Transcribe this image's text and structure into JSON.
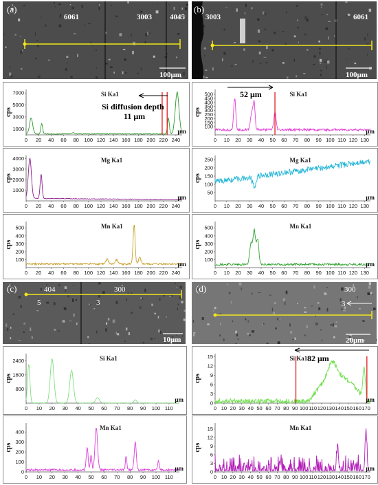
{
  "figure": {
    "panel_a": {
      "letter": "(a)",
      "sem": {
        "regions": [
          "6061",
          "3003",
          "4045"
        ],
        "scale_bar": "100μm"
      },
      "annotation": {
        "line1": "Si diffusion depth",
        "line2": "11 μm"
      }
    },
    "panel_b": {
      "letter": "(b)",
      "sem": {
        "regions": [
          "3003",
          "6061"
        ],
        "scale_bar": "100μm"
      },
      "annotation": "52 μm"
    },
    "panel_c": {
      "letter": "(c)",
      "sem": {
        "regions": [
          "404",
          "300"
        ],
        "markers": [
          "5",
          "3"
        ],
        "scale_bar": "10μm"
      }
    },
    "panel_d": {
      "letter": "(d)",
      "sem": {
        "regions": [
          "300"
        ],
        "markers": [
          "3"
        ],
        "scale_bar": "20μm"
      },
      "annotation": "82 μm"
    }
  },
  "chart_data": [
    {
      "id": "a1",
      "type": "line",
      "title": "Si Ka1",
      "ylabel": "cps",
      "xlabel": "μm",
      "color": "#2e9a2e",
      "xlim": [
        0,
        250
      ],
      "ylim": [
        0,
        7600
      ],
      "xticks": [
        "0",
        "20",
        "40",
        "60",
        "80",
        "100",
        "120",
        "140",
        "160",
        "180",
        "200",
        "220",
        "240"
      ],
      "yticks": [
        "1000",
        "3000",
        "5000",
        "7000"
      ],
      "baseline": 150,
      "noise": 60,
      "peaks": [
        [
          8,
          2700,
          2.5
        ],
        [
          25,
          1700,
          1.5
        ],
        [
          75,
          200,
          3
        ],
        [
          228,
          2700,
          1.5
        ],
        [
          242,
          7000,
          3
        ]
      ],
      "markers": [
        218,
        226
      ]
    },
    {
      "id": "b1",
      "type": "line",
      "title": "Si Ka1",
      "ylabel": "cps",
      "xlabel": "μm",
      "color": "#e43dd8",
      "xlim": [
        0,
        135
      ],
      "ylim": [
        0,
        560
      ],
      "xticks": [
        "0",
        "10",
        "20",
        "30",
        "40",
        "50",
        "60",
        "70",
        "80",
        "90",
        "100",
        "110",
        "120",
        "130"
      ],
      "yticks": [
        "100",
        "150",
        "200",
        "250",
        "300",
        "350",
        "400",
        "450",
        "500"
      ],
      "baseline": 62,
      "noise": 14,
      "peaks": [
        [
          17,
          390,
          0.9
        ],
        [
          32,
          230,
          1.2
        ],
        [
          34,
          300,
          0.8
        ],
        [
          52,
          210,
          1.0
        ]
      ],
      "markers": [
        52
      ]
    },
    {
      "id": "a2",
      "type": "line",
      "title": "Mg Ka1",
      "ylabel": "cps",
      "xlabel": "μm",
      "color": "#8a1e8c",
      "xlim": [
        0,
        250
      ],
      "ylim": [
        0,
        4300
      ],
      "xticks": [
        "0",
        "20",
        "40",
        "60",
        "80",
        "100",
        "120",
        "140",
        "160",
        "180",
        "200",
        "220",
        "240"
      ],
      "yticks": [
        "1000",
        "2000",
        "3000",
        "4000"
      ],
      "baseline": 220,
      "noise": 30,
      "peaks": [
        [
          6,
          3800,
          2.5
        ],
        [
          24,
          2300,
          1.6
        ]
      ],
      "decay_to": 120,
      "markers": []
    },
    {
      "id": "b2",
      "type": "line",
      "title": "Mg Ka1",
      "ylabel": "cps",
      "xlabel": "μm",
      "color": "#24b6d6",
      "xlim": [
        0,
        135
      ],
      "ylim": [
        0,
        275
      ],
      "xticks": [
        "0",
        "10",
        "20",
        "30",
        "40",
        "50",
        "60",
        "70",
        "80",
        "90",
        "100",
        "110",
        "120",
        "130"
      ],
      "yticks": [
        "50",
        "100",
        "150",
        "200",
        "250"
      ],
      "baseline": 115,
      "noise": 18,
      "trend_to": 240,
      "peaks": [
        [
          34,
          -55,
          1.5
        ]
      ],
      "markers": []
    },
    {
      "id": "a3",
      "type": "line",
      "title": "Mn Ka1",
      "ylabel": "cps",
      "xlabel": "μm",
      "color": "#c9a02a",
      "xlim": [
        0,
        250
      ],
      "ylim": [
        0,
        580
      ],
      "xticks": [
        "0",
        "20",
        "40",
        "60",
        "80",
        "100",
        "120",
        "140",
        "160",
        "180",
        "200",
        "220",
        "240"
      ],
      "yticks": [
        "100",
        "200",
        "300",
        "400",
        "500"
      ],
      "baseline": 45,
      "noise": 12,
      "peaks": [
        [
          130,
          60,
          2
        ],
        [
          145,
          50,
          2
        ],
        [
          173,
          500,
          1.6
        ],
        [
          182,
          80,
          2
        ]
      ],
      "markers": []
    },
    {
      "id": "b3",
      "type": "line",
      "title": "Mn Ka1",
      "ylabel": "cps",
      "xlabel": "μm",
      "color": "#2fa22f",
      "xlim": [
        0,
        135
      ],
      "ylim": [
        0,
        580
      ],
      "xticks": [
        "0",
        "10",
        "20",
        "30",
        "40",
        "50",
        "60",
        "70",
        "80",
        "90",
        "100",
        "110",
        "120",
        "130"
      ],
      "yticks": [
        "100",
        "200",
        "300",
        "400",
        "500"
      ],
      "baseline": 40,
      "noise": 14,
      "peaks": [
        [
          31,
          250,
          1.0
        ],
        [
          34,
          430,
          1.2
        ],
        [
          37,
          300,
          1.0
        ]
      ],
      "markers": []
    },
    {
      "id": "c1",
      "type": "line",
      "title": "Si Ka1",
      "ylabel": "cps",
      "xlabel": "μm",
      "color": "#7fe07f",
      "xlim": [
        0,
        118
      ],
      "ylim": [
        0,
        2800
      ],
      "xticks": [
        "0",
        "10",
        "20",
        "30",
        "40",
        "50",
        "60",
        "70",
        "80",
        "90",
        "100",
        "110"
      ],
      "yticks": [
        "800",
        "1600",
        "2400"
      ],
      "baseline": 10,
      "noise": 6,
      "peaks": [
        [
          2,
          2200,
          0.9
        ],
        [
          20,
          2500,
          1.4
        ],
        [
          35,
          1850,
          1.4
        ],
        [
          55,
          300,
          1.4
        ],
        [
          84,
          180,
          1.0
        ]
      ],
      "markers": []
    },
    {
      "id": "d1",
      "type": "line",
      "title": "Si Ka1",
      "ylabel": "cps",
      "xlabel": "μm",
      "color": "#6de04a",
      "xlim": [
        0,
        175
      ],
      "ylim": [
        0,
        16
      ],
      "xticks": [
        "0",
        "10",
        "20",
        "30",
        "40",
        "50",
        "60",
        "70",
        "80",
        "90",
        "100",
        "110",
        "120",
        "130",
        "140",
        "150",
        "160",
        "170"
      ],
      "yticks": [
        "0",
        "3",
        "6",
        "9",
        "12",
        "15"
      ],
      "baseline": 0.6,
      "noise": 0.8,
      "hump": [
        [
          105,
          170,
          8
        ]
      ],
      "peaks": [
        [
          132,
          5,
          5
        ],
        [
          168,
          10,
          1.5
        ]
      ],
      "markers": [
        91,
        171
      ]
    },
    {
      "id": "c2",
      "type": "line",
      "title": "Mn Ka1",
      "ylabel": "cps",
      "xlabel": "μm",
      "color": "#dc3fdc",
      "xlim": [
        0,
        118
      ],
      "ylim": [
        0,
        490
      ],
      "xticks": [
        "0",
        "10",
        "20",
        "30",
        "40",
        "50",
        "60",
        "70",
        "80",
        "90",
        "100",
        "110"
      ],
      "yticks": [
        "0",
        "100",
        "200",
        "300",
        "400"
      ],
      "baseline": 20,
      "noise": 10,
      "peaks": [
        [
          47,
          230,
          0.7
        ],
        [
          50,
          150,
          0.6
        ],
        [
          54,
          430,
          1.0
        ],
        [
          77,
          140,
          0.6
        ],
        [
          84,
          280,
          0.8
        ],
        [
          102,
          90,
          0.6
        ]
      ],
      "markers": []
    },
    {
      "id": "d2",
      "type": "line",
      "title": "Mn Ka1",
      "ylabel": "cps",
      "xlabel": "μm",
      "color": "#b31fb8",
      "xlim": [
        0,
        175
      ],
      "ylim": [
        0,
        17
      ],
      "xticks": [
        "0",
        "10",
        "20",
        "30",
        "40",
        "50",
        "60",
        "70",
        "80",
        "90",
        "100",
        "110",
        "120",
        "130",
        "140",
        "150",
        "160",
        "170"
      ],
      "yticks": [
        "0",
        "3",
        "6",
        "9",
        "12",
        "15"
      ],
      "baseline": 0.3,
      "noise": 0,
      "spiky": true,
      "peaks": [
        [
          138,
          8,
          1
        ],
        [
          170,
          14,
          1
        ]
      ],
      "markers": []
    }
  ]
}
